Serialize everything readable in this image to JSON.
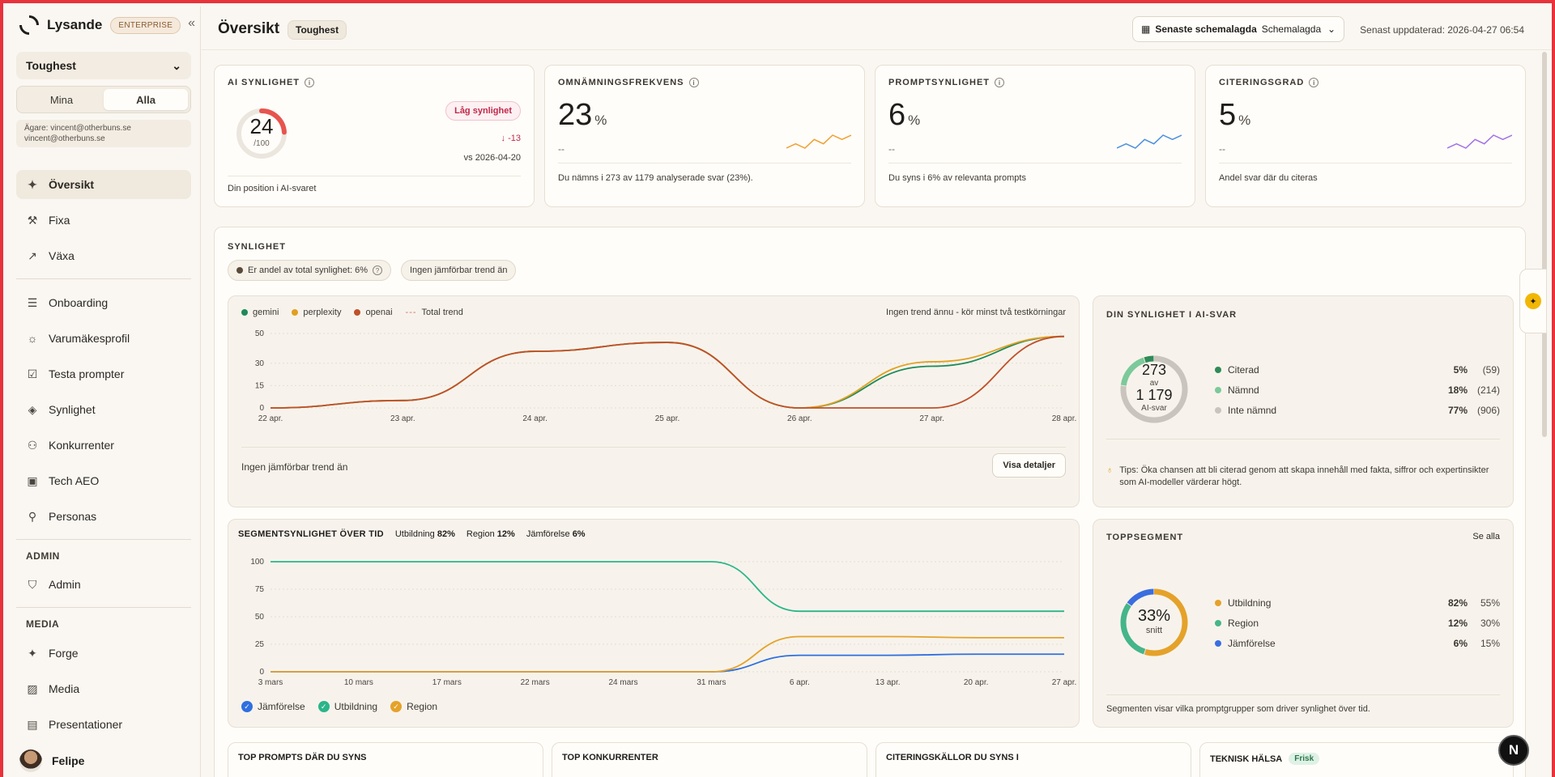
{
  "brand": {
    "name": "Lysande",
    "plan_badge": "ENTERPRISE"
  },
  "sidebar": {
    "workspace": "Toughest",
    "segment": {
      "mine": "Mina",
      "all": "Alla"
    },
    "owner_line1": "Ägare: vincent@otherbuns.se",
    "owner_line2": "vincent@otherbuns.se",
    "items": [
      {
        "label": "Översikt",
        "icon": "sparkle-icon"
      },
      {
        "label": "Fixa",
        "icon": "wrench-icon"
      },
      {
        "label": "Växa",
        "icon": "trend-icon"
      },
      {
        "label": "Onboarding",
        "icon": "list-icon"
      },
      {
        "label": "Varumäkesprofil",
        "icon": "sun-icon"
      },
      {
        "label": "Testa prompter",
        "icon": "checkbox-icon"
      },
      {
        "label": "Synlighet",
        "icon": "layers-icon"
      },
      {
        "label": "Konkurrenter",
        "icon": "users-icon"
      },
      {
        "label": "Tech AEO",
        "icon": "chip-icon"
      },
      {
        "label": "Personas",
        "icon": "person-icon"
      }
    ],
    "admin_label": "ADMIN",
    "admin_items": [
      {
        "label": "Admin",
        "icon": "shield-icon"
      }
    ],
    "media_label": "MEDIA",
    "media_items": [
      {
        "label": "Forge",
        "icon": "sparkle-icon"
      },
      {
        "label": "Media",
        "icon": "image-icon"
      },
      {
        "label": "Presentationer",
        "icon": "document-icon"
      }
    ],
    "user_name": "Felipe"
  },
  "header": {
    "title": "Översikt",
    "workspace_chip": "Toughest",
    "schedule_label": "Senaste schemalagda",
    "schedule_value": "Schemalagda",
    "updated": "Senast uppdaterad: 2026-04-27 06:54"
  },
  "kpis": {
    "ai": {
      "label": "AI SYNLIGHET",
      "score": "24",
      "max": "/100",
      "badge": "Låg synlighet",
      "delta": "↓ -13",
      "vs": "vs 2026-04-20",
      "foot": "Din position i AI-svaret",
      "score_value": 24,
      "score_color": "#e8544e"
    },
    "mention": {
      "label": "OMNÄMNINGSFREKVENS",
      "value": "23",
      "unit": "%",
      "dash": "--",
      "foot": "Du nämns i 273 av 1179 analyserade svar (23%).",
      "color": "#f0a030",
      "spark": [
        3,
        4,
        3,
        5,
        4,
        6,
        5,
        6
      ]
    },
    "prompt": {
      "label": "PROMPTSYNLIGHET",
      "value": "6",
      "unit": "%",
      "dash": "--",
      "foot": "Du syns i 6% av relevanta prompts",
      "color": "#4a8fe0",
      "spark": [
        3,
        4,
        3,
        5,
        4,
        6,
        5,
        6
      ]
    },
    "cite": {
      "label": "CITERINGSGRAD",
      "value": "5",
      "unit": "%",
      "dash": "--",
      "foot": "Andel svar där du citeras",
      "color": "#a071e8",
      "spark": [
        3,
        4,
        3,
        5,
        4,
        6,
        5,
        6
      ]
    }
  },
  "visibility": {
    "title": "SYNLIGHET",
    "share_pill": "Er andel av total synlighet: 6%",
    "trend_pill": "Ingen jämförbar trend än",
    "legend": [
      {
        "name": "gemini",
        "color": "#1e8a5a"
      },
      {
        "name": "perplexity",
        "color": "#e0a020"
      },
      {
        "name": "openai",
        "color": "#c0502a"
      }
    ],
    "total_trend": "Total trend",
    "no_trend": "Ingen trend ännu - kör minst två testkörningar",
    "footer_text": "Ingen jämförbar trend än",
    "details_button": "Visa detaljer"
  },
  "chart_data": [
    {
      "type": "line",
      "x": [
        "22 apr.",
        "23 apr.",
        "24 apr.",
        "25 apr.",
        "26 apr.",
        "27 apr.",
        "28 apr."
      ],
      "ylim": [
        0,
        50
      ],
      "yticks": [
        0,
        15,
        30,
        50
      ],
      "series": [
        {
          "name": "gemini",
          "color": "#1e8a5a",
          "values": [
            0,
            5,
            38,
            44,
            0,
            28,
            48
          ]
        },
        {
          "name": "perplexity",
          "color": "#e0a020",
          "values": [
            0,
            5,
            38,
            44,
            0,
            31,
            48
          ]
        },
        {
          "name": "openai",
          "color": "#c0502a",
          "values": [
            0,
            5,
            38,
            44,
            0,
            0,
            48
          ]
        }
      ]
    },
    {
      "type": "line",
      "title": "SEGMENTSYNLIGHET ÖVER TID",
      "x": [
        "3 mars",
        "10 mars",
        "17 mars",
        "22 mars",
        "24 mars",
        "31 mars",
        "6 apr.",
        "13 apr.",
        "20 apr.",
        "27 apr."
      ],
      "ylim": [
        0,
        100
      ],
      "yticks": [
        0,
        25,
        50,
        75,
        100
      ],
      "series": [
        {
          "name": "Jämförelse",
          "color": "#2f6fe0",
          "values": [
            0,
            0,
            0,
            0,
            0,
            0,
            15,
            15,
            16,
            16
          ]
        },
        {
          "name": "Utbildning",
          "color": "#2bb58a",
          "values": [
            100,
            100,
            100,
            100,
            100,
            100,
            55,
            55,
            55,
            55
          ]
        },
        {
          "name": "Region",
          "color": "#e5a22a",
          "values": [
            0,
            0,
            0,
            0,
            0,
            0,
            32,
            32,
            31,
            31
          ]
        }
      ]
    }
  ],
  "segment_header": {
    "title": "SEGMENTSYNLIGHET ÖVER TID",
    "items": [
      {
        "label": "Utbildning",
        "value": "82%"
      },
      {
        "label": "Region",
        "value": "12%"
      },
      {
        "label": "Jämförelse",
        "value": "6%"
      }
    ]
  },
  "ai_visibility": {
    "title": "DIN SYNLIGHET I AI-SVAR",
    "center_value": "273",
    "center_of": "av",
    "center_total": "1 179",
    "center_caption": "AI-svar",
    "rows": [
      {
        "label": "Citerad",
        "pct": "5%",
        "count": "(59)",
        "color": "#2e8b57",
        "fraction": 0.05
      },
      {
        "label": "Nämnd",
        "pct": "18%",
        "count": "(214)",
        "color": "#7cc99a",
        "fraction": 0.18
      },
      {
        "label": "Inte nämnd",
        "pct": "77%",
        "count": "(906)",
        "color": "#c9c5be",
        "fraction": 0.77
      }
    ],
    "tip": "Tips: Öka chansen att bli citerad genom att skapa innehåll med fakta, siffror och expertinsikter som AI-modeller värderar högt."
  },
  "top_segment": {
    "title": "TOPPSEGMENT",
    "see_all": "Se alla",
    "center_value": "33%",
    "center_caption": "snitt",
    "rows": [
      {
        "label": "Utbildning",
        "v1": "82%",
        "v2": "55%",
        "color": "#e5a22a",
        "fraction": 0.55
      },
      {
        "label": "Region",
        "v1": "12%",
        "v2": "30%",
        "color": "#45b58a",
        "fraction": 0.3
      },
      {
        "label": "Jämförelse",
        "v1": "6%",
        "v2": "15%",
        "color": "#3a6ee0",
        "fraction": 0.15
      }
    ],
    "foot": "Segmenten visar vilka promptgrupper som driver synlighet över tid."
  },
  "bottom_cards": {
    "prompts": "TOP PROMPTS DÄR DU SYNS",
    "competitors": "TOP KONKURRENTER",
    "sources": "CITERINGSKÄLLOR DU SYNS I",
    "health": "TEKNISK HÄLSA",
    "health_badge": "Frisk"
  },
  "next_badge": "N"
}
